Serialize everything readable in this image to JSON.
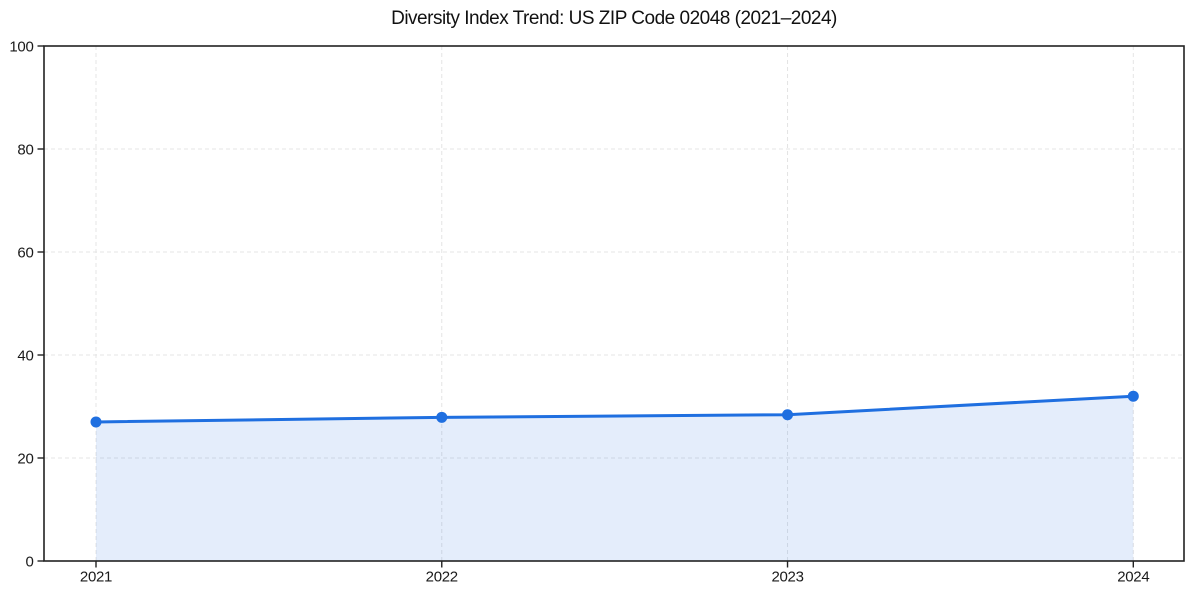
{
  "figure": {
    "background": "#ffffff"
  },
  "chart_data": {
    "type": "area",
    "title": "Diversity Index Trend: US ZIP Code 02048 (2021–2024)",
    "categories": [
      "2021",
      "2022",
      "2023",
      "2024"
    ],
    "series": [
      {
        "name": "Diversity Index",
        "values": [
          27.0,
          27.9,
          28.4,
          32.0
        ]
      }
    ],
    "xlabel": "",
    "ylabel": "",
    "ylim": [
      0,
      100
    ],
    "yticks": [
      0,
      20,
      40,
      60,
      80,
      100
    ],
    "grid": {
      "visible": true,
      "style": "dashed",
      "color": "#e4e4e4"
    },
    "legend": {
      "visible": false
    },
    "colors": {
      "line": "#1f6fe0",
      "marker": "#1f6fe0",
      "fill": "rgba(31,111,224,0.12)",
      "axis": "#222222",
      "tick_label": "#1a1a1a",
      "title": "#111111",
      "background": "#ffffff"
    },
    "marker": {
      "shape": "circle",
      "size": 5.5
    },
    "line_width": 3
  }
}
